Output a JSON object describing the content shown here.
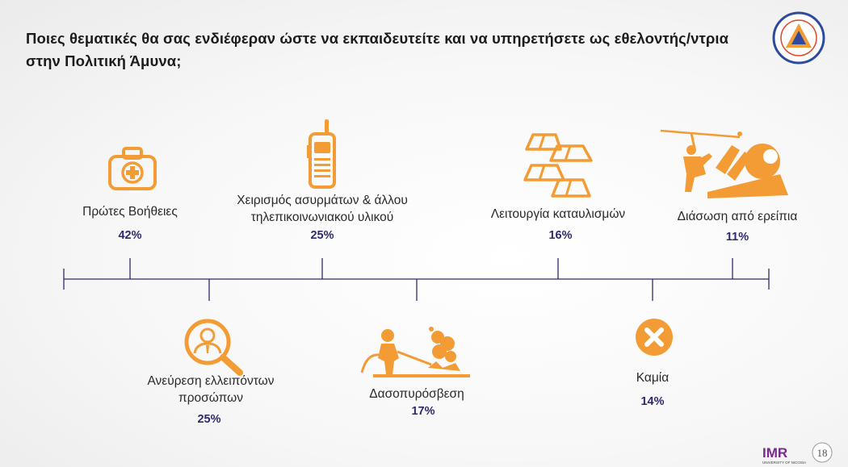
{
  "slide": {
    "title": "Ποιες θεματικές θα σας ενδιέφεραν ώστε να εκπαιδευτείτε και να υπηρετήσετε ως εθελοντής/ντρια στην Πολιτική Άμυνα;"
  },
  "colors": {
    "accent": "#f39c35",
    "timeline": "#2e2a6e",
    "percent": "#2e2a6e"
  },
  "topics": [
    {
      "label": "Πρώτες Βοήθειες",
      "percent": "42%",
      "icon": "first-aid-kit-icon"
    },
    {
      "label": "Ανεύρεση ελλειπόντων προσώπων",
      "percent": "25%",
      "icon": "person-search-icon"
    },
    {
      "label": "Χειρισμός ασυρμάτων & άλλου τηλεπικοινωνιακού υλικού",
      "percent": "25%",
      "icon": "walkie-talkie-icon"
    },
    {
      "label": "Δασοπυρόσβεση",
      "percent": "17%",
      "icon": "firefighter-hose-icon"
    },
    {
      "label": "Λειτουργία καταυλισμών",
      "percent": "16%",
      "icon": "tents-camp-icon"
    },
    {
      "label": "Καμία",
      "percent": "14%",
      "icon": "x-circle-icon"
    },
    {
      "label": "Διάσωση από ερείπια",
      "percent": "11%",
      "icon": "rescue-rubble-icon"
    }
  ],
  "logos": {
    "civil_defence": "civil-defence-logo",
    "imr": "IMR",
    "imr_sub": "UNIVERSITY OF NICOSIA",
    "anniversary": "18"
  }
}
